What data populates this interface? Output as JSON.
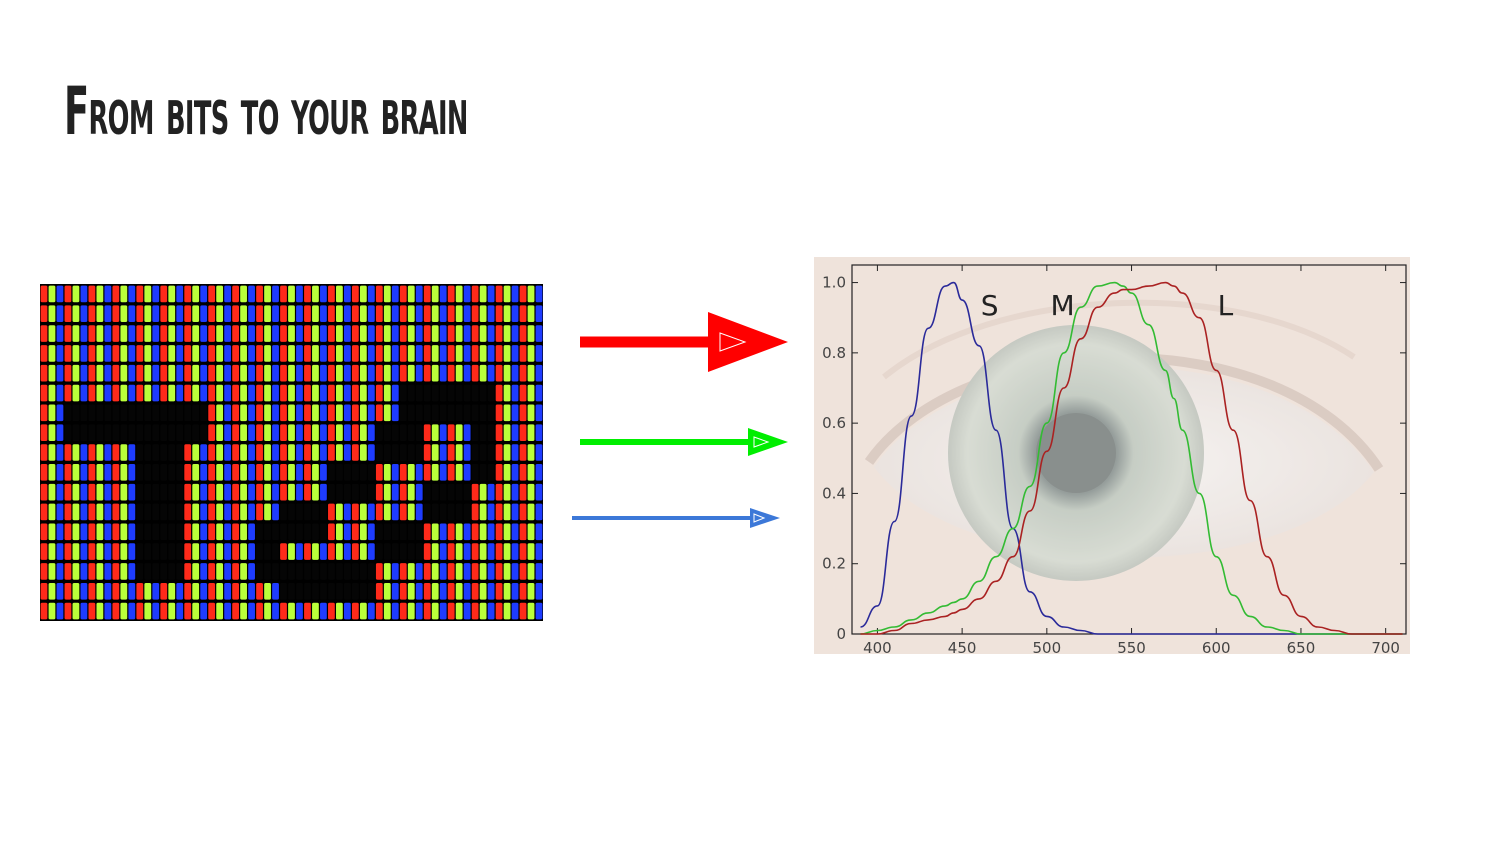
{
  "slide": {
    "title": "From bits to your brain"
  },
  "arrows": {
    "colors": [
      "#ff0000",
      "#00ee00",
      "#3c78d8"
    ]
  },
  "pixel_display": {
    "subpixel_colors": [
      "#ff2a1a",
      "#baff3a",
      "#1e3cff"
    ],
    "dark_color": "#050505"
  },
  "chart_data": {
    "type": "line",
    "background": "eye photograph",
    "x": [
      390,
      400,
      410,
      420,
      430,
      440,
      445,
      450,
      460,
      470,
      480,
      490,
      500,
      510,
      520,
      530,
      540,
      545,
      550,
      560,
      570,
      575,
      580,
      590,
      600,
      610,
      620,
      630,
      640,
      650,
      660,
      670,
      680,
      690,
      700,
      710
    ],
    "xlim": [
      385,
      712
    ],
    "ylim": [
      0,
      1.05
    ],
    "xticks": [
      "400",
      "450",
      "500",
      "550",
      "600",
      "650",
      "700"
    ],
    "xtick_values": [
      400,
      450,
      500,
      550,
      600,
      650,
      700
    ],
    "yticks": [
      "0",
      "0.2",
      "0.4",
      "0.6",
      "0.8",
      "1.0"
    ],
    "ytick_values": [
      0,
      0.2,
      0.4,
      0.6,
      0.8,
      1.0
    ],
    "series": [
      {
        "name": "S",
        "color": "#2a2a9a",
        "values": [
          0.02,
          0.08,
          0.32,
          0.62,
          0.87,
          0.99,
          1.0,
          0.95,
          0.82,
          0.58,
          0.3,
          0.12,
          0.05,
          0.02,
          0.01,
          0.0,
          0.0,
          0.0,
          0.0,
          0.0,
          0.0,
          0.0,
          0.0,
          0.0,
          0.0,
          0.0,
          0.0,
          0.0,
          0.0,
          0.0,
          0.0,
          0.0,
          0.0,
          0.0,
          0.0,
          0.0
        ]
      },
      {
        "name": "M",
        "color": "#33bb33",
        "values": [
          0.0,
          0.01,
          0.02,
          0.04,
          0.06,
          0.08,
          0.09,
          0.1,
          0.15,
          0.22,
          0.3,
          0.42,
          0.6,
          0.8,
          0.93,
          0.99,
          1.0,
          0.99,
          0.97,
          0.88,
          0.75,
          0.67,
          0.58,
          0.4,
          0.22,
          0.11,
          0.05,
          0.02,
          0.01,
          0.0,
          0.0,
          0.0,
          0.0,
          0.0,
          0.0,
          0.0
        ]
      },
      {
        "name": "L",
        "color": "#aa2222",
        "values": [
          0.0,
          0.0,
          0.01,
          0.03,
          0.04,
          0.05,
          0.06,
          0.07,
          0.1,
          0.15,
          0.22,
          0.35,
          0.52,
          0.7,
          0.84,
          0.93,
          0.97,
          0.98,
          0.98,
          0.99,
          1.0,
          0.99,
          0.97,
          0.9,
          0.75,
          0.58,
          0.38,
          0.22,
          0.11,
          0.05,
          0.02,
          0.01,
          0.0,
          0.0,
          0.0,
          0.0
        ]
      }
    ],
    "grid": false
  }
}
